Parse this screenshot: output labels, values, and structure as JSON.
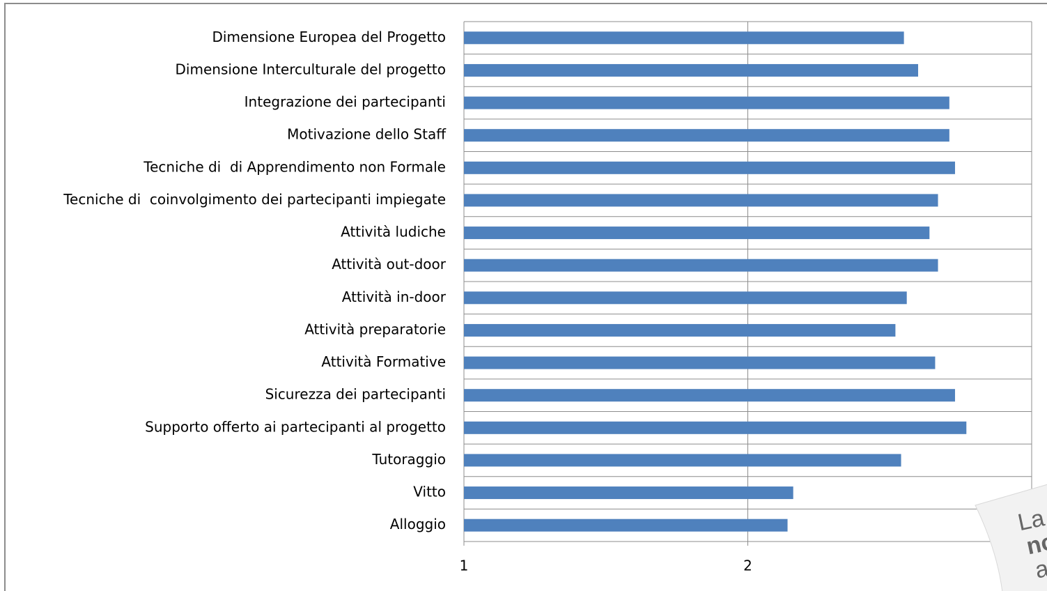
{
  "chart_data": {
    "type": "barh",
    "categories": [
      "Dimensione Europea del Progetto",
      "Dimensione Interculturale del progetto",
      "Integrazione dei partecipanti",
      "Motivazione dello Staff",
      "Tecniche di  di Apprendimento non Formale",
      "Tecniche di  coinvolgimento dei partecipanti impiegate",
      "Attività ludiche",
      "Attività out-door",
      "Attività in-door",
      "Attività preparatorie",
      "Attività Formative",
      "Sicurezza dei partecipanti",
      "Supporto offerto ai partecipanti al progetto",
      "Tutoraggio",
      "Vitto",
      "Alloggio"
    ],
    "values": [
      2.55,
      2.6,
      2.71,
      2.71,
      2.73,
      2.67,
      2.64,
      2.67,
      2.56,
      2.52,
      2.66,
      2.73,
      2.77,
      2.54,
      2.16,
      2.14
    ],
    "color": "#4f81bd",
    "xlim": [
      1,
      3
    ],
    "xticks": [
      1,
      2
    ],
    "grid": true
  },
  "note": {
    "lines": [
      "La",
      "no",
      "a"
    ]
  }
}
